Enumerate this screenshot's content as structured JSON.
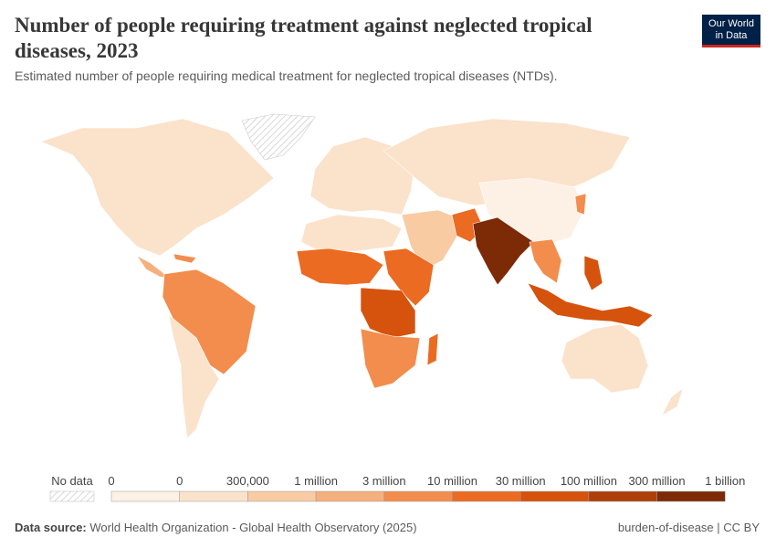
{
  "header": {
    "title": "Number of people requiring treatment against neglected tropical diseases, 2023",
    "subtitle": "Estimated number of people requiring medical treatment for neglected tropical diseases (NTDs).",
    "logo": [
      "Our World",
      "in Data"
    ]
  },
  "legend": {
    "no_data": "No data",
    "labels": [
      "0",
      "0",
      "300,000",
      "1 million",
      "3 million",
      "10 million",
      "30 million",
      "100 million",
      "300 million",
      "1 billion"
    ],
    "colors": [
      "#fdf1e6",
      "#fbe2cb",
      "#f8cba3",
      "#f5b07d",
      "#f28d4d",
      "#eb6b22",
      "#d5530d",
      "#ad400a",
      "#7d2a07"
    ]
  },
  "footer": {
    "source_label": "Data source:",
    "source": "World Health Organization - Global Health Observatory (2025)",
    "credit": "burden-of-disease | CC BY"
  }
}
